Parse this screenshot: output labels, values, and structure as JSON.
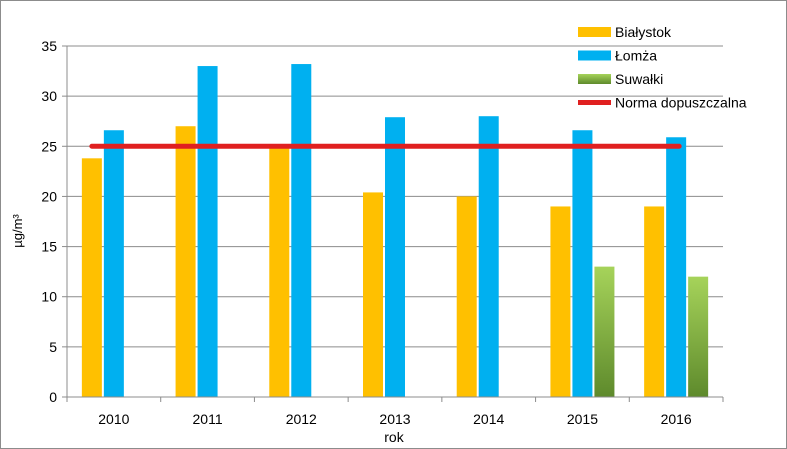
{
  "chart_data": {
    "type": "bar",
    "categories": [
      "2010",
      "2011",
      "2012",
      "2013",
      "2014",
      "2015",
      "2016"
    ],
    "series": [
      {
        "name": "Białystok",
        "values": [
          23.8,
          27,
          25,
          20.4,
          20,
          19,
          19
        ],
        "color": "#ffc000"
      },
      {
        "name": "Łomża",
        "values": [
          26.6,
          33,
          33.2,
          27.9,
          28,
          26.6,
          25.9
        ],
        "color": "#00b0f0"
      },
      {
        "name": "Suwałki",
        "values": [
          null,
          null,
          null,
          null,
          null,
          13,
          12
        ],
        "color": "#92d050"
      }
    ],
    "reference_line": {
      "name": "Norma dopuszczalna",
      "value": 25,
      "color": "#e02020",
      "from": "2010",
      "to": "2016"
    },
    "xlabel": "rok",
    "ylabel": "µg/m³",
    "ylim": [
      0,
      35
    ],
    "yticks": [
      0,
      5,
      10,
      15,
      20,
      25,
      30,
      35
    ],
    "grid": true,
    "legend": "top-right"
  }
}
